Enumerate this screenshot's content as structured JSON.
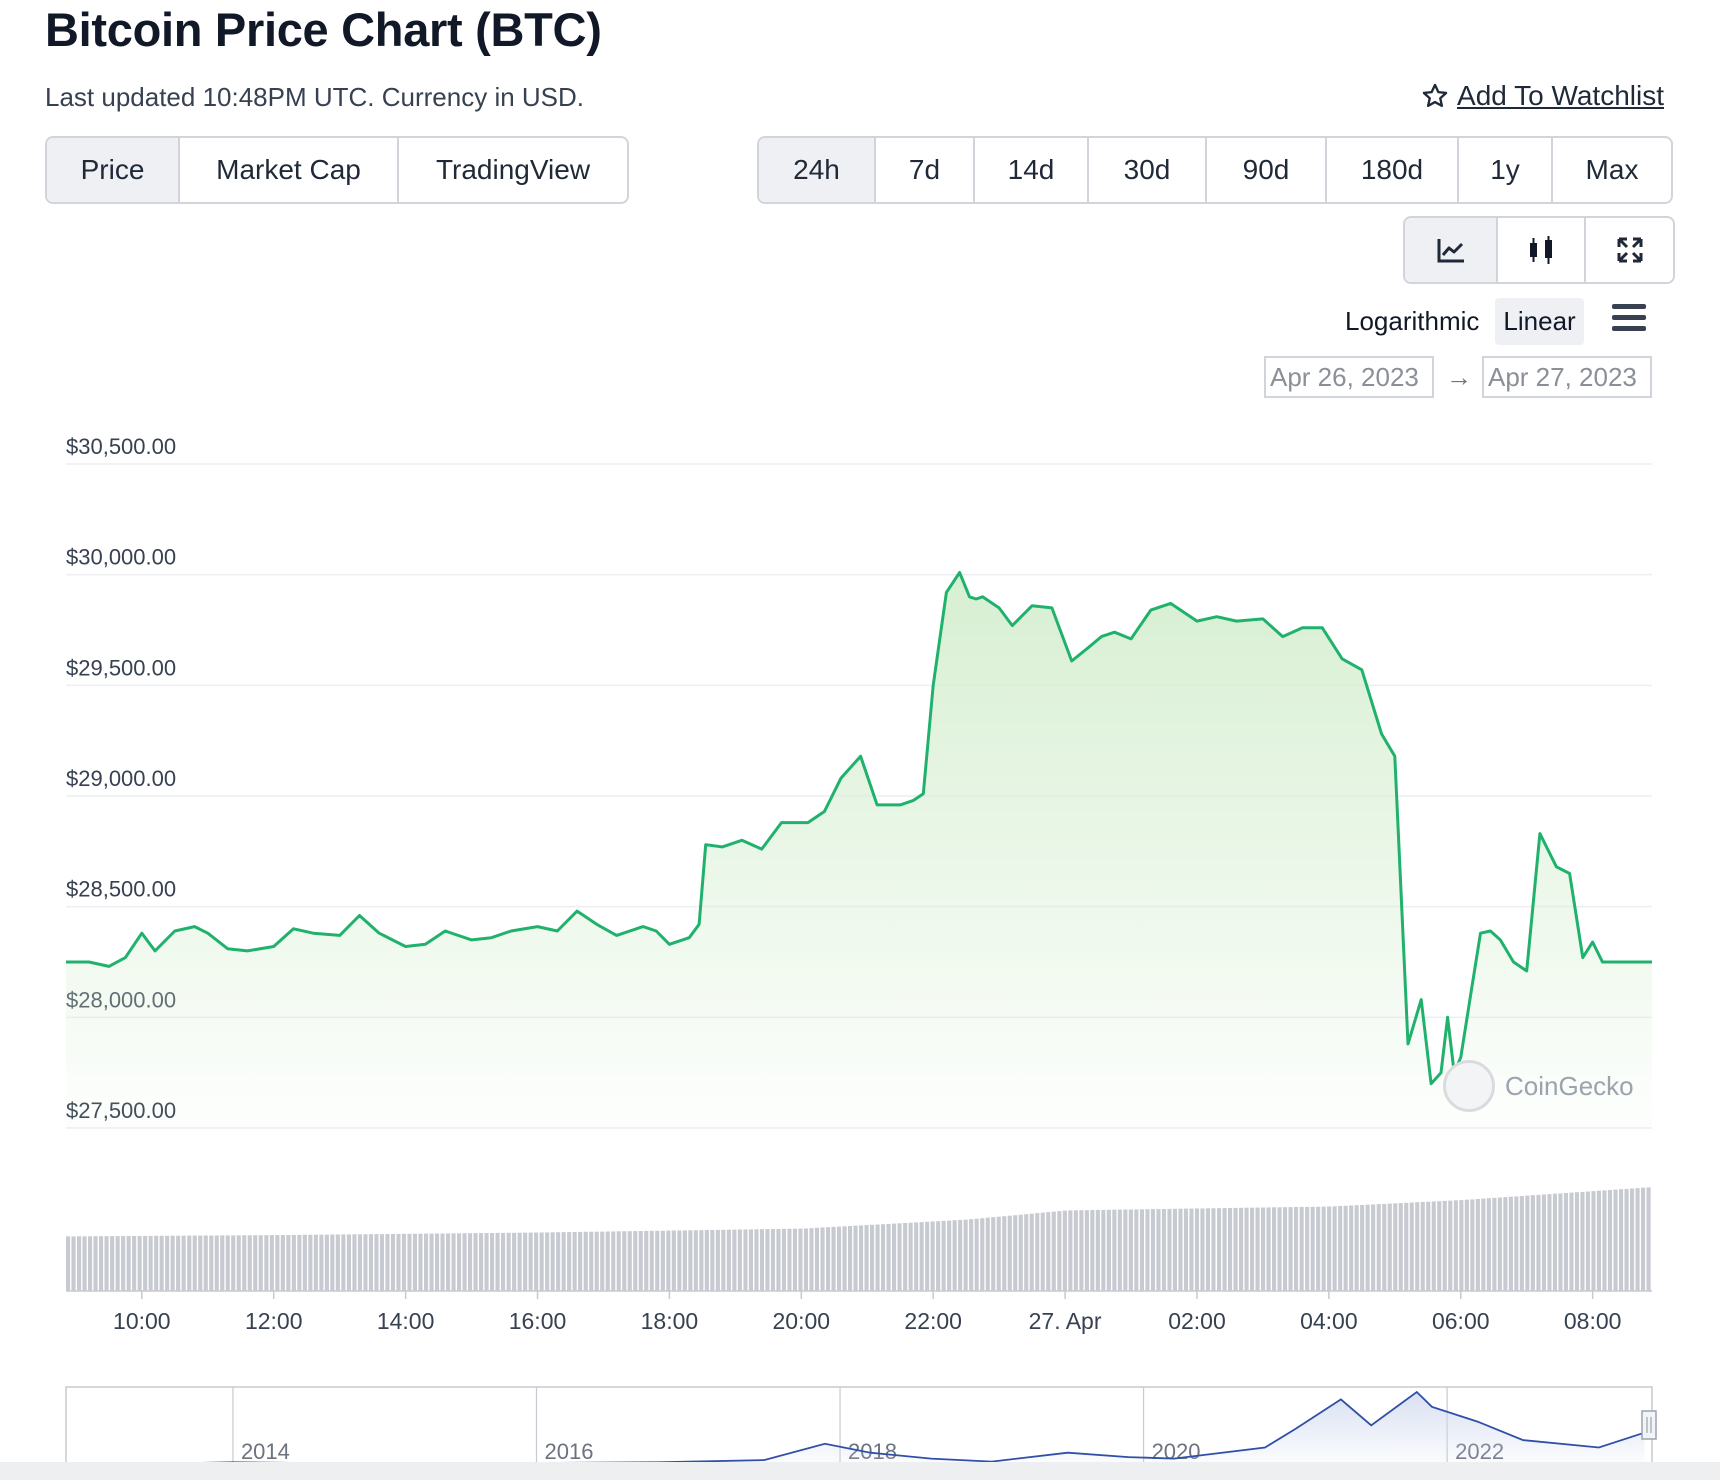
{
  "header": {
    "title": "Bitcoin Price Chart (BTC)",
    "subtitle": "Last updated 10:48PM UTC. Currency in USD.",
    "watchlist_label": "Add To Watchlist",
    "watchlist_icon": "star-outline-icon"
  },
  "tabs": [
    {
      "label": "Price",
      "active": true
    },
    {
      "label": "Market Cap",
      "active": false
    },
    {
      "label": "TradingView",
      "active": false
    }
  ],
  "ranges": [
    {
      "label": "24h",
      "active": true
    },
    {
      "label": "7d",
      "active": false
    },
    {
      "label": "14d",
      "active": false
    },
    {
      "label": "30d",
      "active": false
    },
    {
      "label": "90d",
      "active": false
    },
    {
      "label": "180d",
      "active": false
    },
    {
      "label": "1y",
      "active": false
    },
    {
      "label": "Max",
      "active": false
    }
  ],
  "chart_modes": [
    {
      "icon": "line-chart-icon",
      "active": true
    },
    {
      "icon": "candlestick-icon",
      "active": false
    },
    {
      "icon": "fullscreen-icon",
      "active": false
    }
  ],
  "scale": {
    "logarithmic_label": "Logarithmic",
    "linear_label": "Linear",
    "active": "Linear",
    "menu_icon": "hamburger-menu-icon"
  },
  "date_range": {
    "from": "Apr 26, 2023",
    "to": "Apr 27, 2023"
  },
  "watermark": "CoinGecko",
  "colors": {
    "line": "#20b26c",
    "fill_top": "#d7efd2",
    "volume": "#c7cad1",
    "navigator_line": "#2f4fa8"
  },
  "chart_data": [
    {
      "type": "area",
      "y_ticks": [
        "$30,500.00",
        "$30,000.00",
        "$29,500.00",
        "$29,000.00",
        "$28,500.00",
        "$28,000.00",
        "$27,500.00"
      ],
      "ylim": [
        27500,
        30500
      ],
      "x_ticks": [
        "10:00",
        "12:00",
        "14:00",
        "16:00",
        "18:00",
        "20:00",
        "22:00",
        "27. Apr",
        "02:00",
        "04:00",
        "06:00",
        "08:00"
      ],
      "x_tick_hours": [
        10,
        12,
        14,
        16,
        18,
        20,
        22,
        24,
        26,
        28,
        30,
        32
      ],
      "xlim_hours": [
        8.85,
        32.9
      ],
      "series": [
        {
          "x": [
            8.85,
            9.2,
            9.5,
            9.75,
            10.0,
            10.2,
            10.5,
            10.8,
            11.0,
            11.3,
            11.6,
            12.0,
            12.3,
            12.6,
            13.0,
            13.3,
            13.6,
            13.8,
            14.0,
            14.3,
            14.6,
            15.0,
            15.3,
            15.6,
            16.0,
            16.3,
            16.6,
            16.9,
            17.2,
            17.6,
            17.8,
            18.0,
            18.3,
            18.45,
            18.55,
            18.8,
            19.1,
            19.4,
            19.7,
            19.9,
            20.1,
            20.35,
            20.6,
            20.9,
            21.15,
            21.35,
            21.5,
            21.7,
            21.85,
            22.0,
            22.2,
            22.4,
            22.55,
            22.65,
            22.75,
            22.85,
            23.0,
            23.2,
            23.5,
            23.8,
            24.1,
            24.35,
            24.55,
            24.75,
            25.0,
            25.3,
            25.6,
            26.0,
            26.3,
            26.6,
            27.0,
            27.3,
            27.6,
            27.9,
            28.2,
            28.5,
            28.8,
            29.0,
            29.2,
            29.4,
            29.55,
            29.7,
            29.8,
            29.9,
            30.0,
            30.15,
            30.3,
            30.45,
            30.6,
            30.8,
            31.0,
            31.2,
            31.45,
            31.65,
            31.85,
            32.0,
            32.15,
            32.3,
            32.5,
            32.7,
            32.9
          ],
          "y": [
            28250,
            28250,
            28230,
            28270,
            28380,
            28300,
            28390,
            28410,
            28380,
            28310,
            28300,
            28320,
            28400,
            28380,
            28370,
            28460,
            28380,
            28350,
            28320,
            28330,
            28390,
            28350,
            28360,
            28390,
            28410,
            28390,
            28480,
            28420,
            28370,
            28410,
            28390,
            28330,
            28360,
            28420,
            28780,
            28770,
            28800,
            28760,
            28880,
            28880,
            28880,
            28930,
            29080,
            29180,
            28960,
            28960,
            28960,
            28980,
            29010,
            29500,
            29920,
            30010,
            29900,
            29890,
            29900,
            29880,
            29850,
            29770,
            29860,
            29850,
            29610,
            29670,
            29720,
            29740,
            29710,
            29840,
            29870,
            29790,
            29810,
            29790,
            29800,
            29720,
            29760,
            29760,
            29620,
            29570,
            29280,
            29180,
            27880,
            28080,
            27700,
            27750,
            28000,
            27750,
            27820,
            28100,
            28380,
            28390,
            28350,
            28250,
            28210,
            28830,
            28680,
            28650,
            28270,
            28340,
            28250,
            28250,
            28250,
            28250,
            28250
          ]
        }
      ]
    },
    {
      "type": "bar",
      "title": "",
      "note_volume": "relative trading volume",
      "x_hours": [
        8.85,
        12,
        16,
        20,
        22.5,
        24,
        28,
        30,
        32.9
      ],
      "values": [
        0.42,
        0.43,
        0.45,
        0.48,
        0.55,
        0.62,
        0.65,
        0.7,
        0.8
      ]
    },
    {
      "type": "line",
      "x_ticks": [
        "2014",
        "2016",
        "2018",
        "2020",
        "2022"
      ],
      "x": [
        2012.9,
        2013.5,
        2014.0,
        2015.0,
        2016.0,
        2016.8,
        2017.5,
        2017.9,
        2018.2,
        2018.6,
        2019.0,
        2019.5,
        2019.9,
        2020.2,
        2020.8,
        2021.0,
        2021.3,
        2021.5,
        2021.8,
        2021.9,
        2022.2,
        2022.5,
        2023.0,
        2023.3
      ],
      "y": [
        0.02,
        0.03,
        0.05,
        0.03,
        0.04,
        0.05,
        0.08,
        0.3,
        0.18,
        0.1,
        0.06,
        0.18,
        0.12,
        0.1,
        0.25,
        0.5,
        0.9,
        0.55,
        1.0,
        0.8,
        0.6,
        0.35,
        0.25,
        0.45
      ]
    }
  ]
}
